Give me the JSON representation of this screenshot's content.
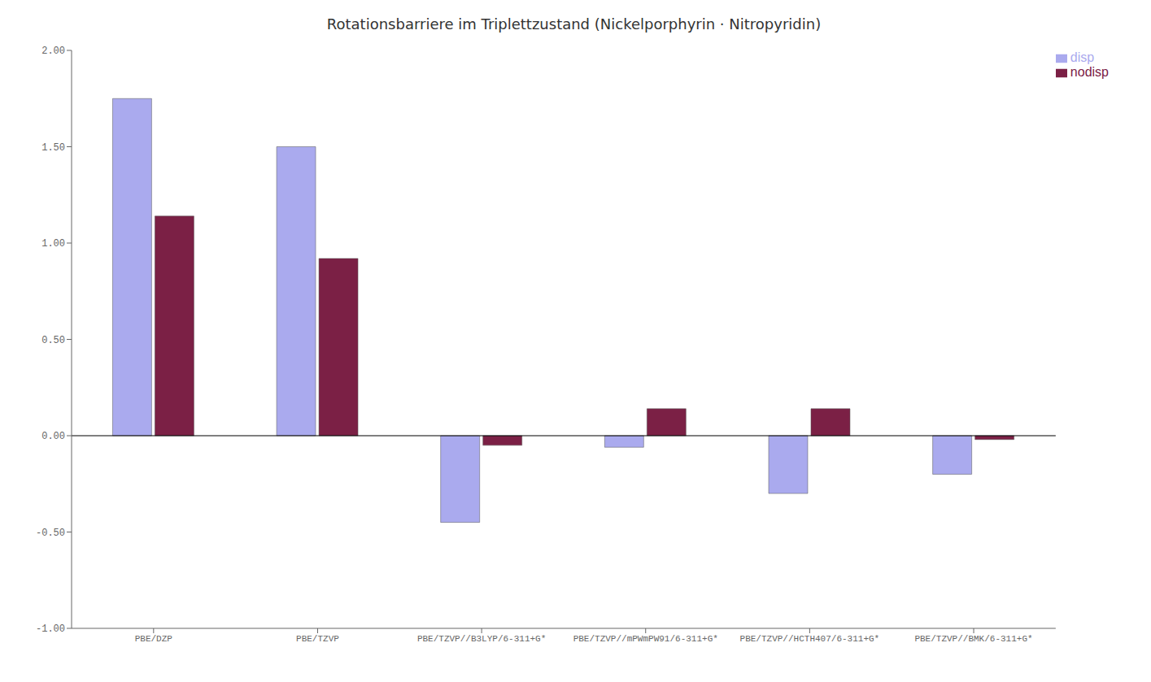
{
  "chart_data": {
    "type": "bar",
    "title": "Rotationsbarriere im Triplettzustand (Nickelporphyrin · Nitropyridin)",
    "categories": [
      "PBE/DZP",
      "PBE/TZVP",
      "PBE/TZVP//B3LYP/6-311+G*",
      "PBE/TZVP//mPWmPW91/6-311+G*",
      "PBE/TZVP//HCTH407/6-311+G*",
      "PBE/TZVP//BMK/6-311+G*"
    ],
    "series": [
      {
        "name": "disp",
        "color": "#aaaaee",
        "values": [
          1.75,
          1.5,
          -0.45,
          -0.06,
          -0.3,
          -0.2
        ]
      },
      {
        "name": "nodisp",
        "color": "#7b2045",
        "values": [
          1.14,
          0.92,
          -0.05,
          0.14,
          0.14,
          -0.02
        ]
      }
    ],
    "ylim": [
      -1.0,
      2.0
    ],
    "yticks": [
      {
        "value": -1.0,
        "label": "-1.00"
      },
      {
        "value": -0.5,
        "label": "-0.50"
      },
      {
        "value": 0.0,
        "label": "0.00"
      },
      {
        "value": 0.5,
        "label": "0.50"
      },
      {
        "value": 1.0,
        "label": "1.00"
      },
      {
        "value": 1.5,
        "label": "1.50"
      },
      {
        "value": 2.0,
        "label": "2.00"
      }
    ],
    "grid": false,
    "legend": "upper right"
  }
}
